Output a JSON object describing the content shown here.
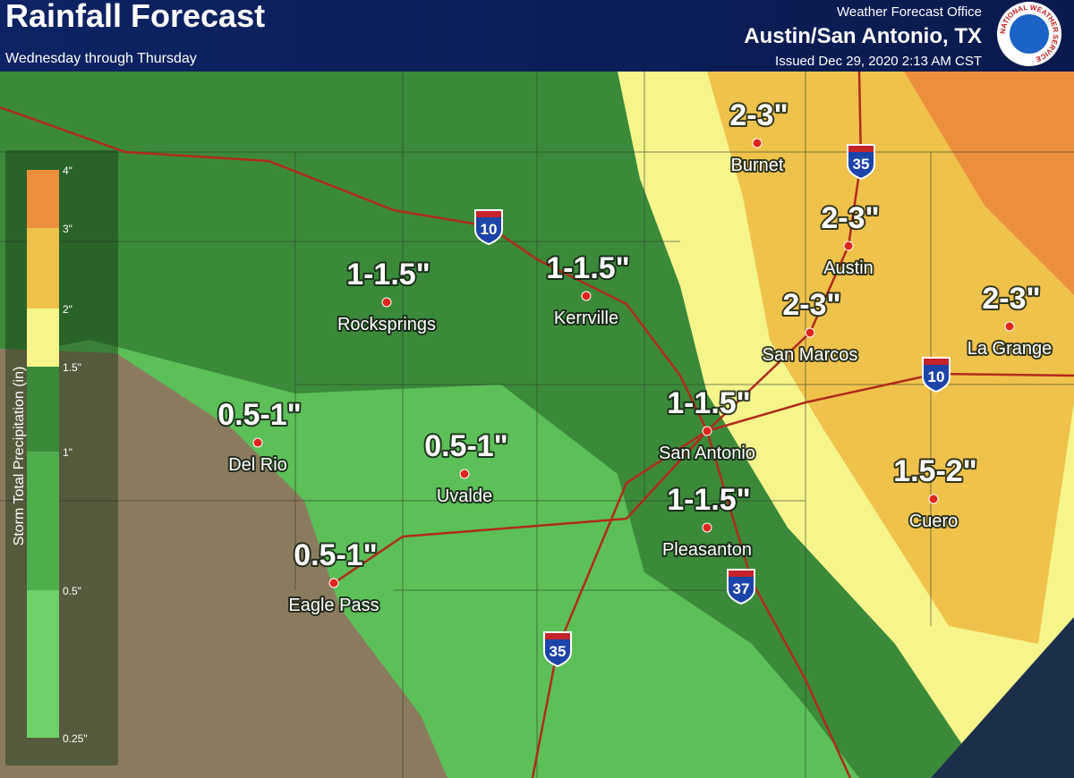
{
  "header": {
    "title": "Rainfall Forecast",
    "subtitle": "Wednesday through Thursday",
    "office": "Weather Forecast Office",
    "location": "Austin/San Antonio, TX",
    "issued": "Issued Dec 29, 2020 2:13 AM CST",
    "logo_text": "NATIONAL WEATHER SERVICE"
  },
  "legend": {
    "title": "Storm Total Precipitation (in)",
    "items": [
      {
        "label": "4\"",
        "color": "#ec8f3c"
      },
      {
        "label": "3\"",
        "color": "#efc24c"
      },
      {
        "label": "2\"",
        "color": "#f6f58c"
      },
      {
        "label": "1.5\"",
        "color": "#3b8a3a"
      },
      {
        "label": "1\"",
        "color": "#4fae4c"
      },
      {
        "label": "0.5\"",
        "color": "#6fd06a"
      },
      {
        "label": "0.25\""
      }
    ]
  },
  "cities": [
    {
      "amount": "2-3\"",
      "name": "Burnet"
    },
    {
      "amount": "2-3\"",
      "name": "Austin"
    },
    {
      "amount": "2-3\"",
      "name": "San Marcos"
    },
    {
      "amount": "2-3\"",
      "name": "La Grange"
    },
    {
      "amount": "1-1.5\"",
      "name": "Rocksprings"
    },
    {
      "amount": "1-1.5\"",
      "name": "Kerrville"
    },
    {
      "amount": "0.5-1\"",
      "name": "Del Rio"
    },
    {
      "amount": "0.5-1\"",
      "name": "Uvalde"
    },
    {
      "amount": "1-1.5\"",
      "name": "San Antonio"
    },
    {
      "amount": "1.5-2\"",
      "name": "Cuero"
    },
    {
      "amount": "1-1.5\"",
      "name": "Pleasanton"
    },
    {
      "amount": "0.5-1\"",
      "name": "Eagle Pass"
    }
  ],
  "highways": [
    "10",
    "35",
    "10",
    "37",
    "35"
  ]
}
